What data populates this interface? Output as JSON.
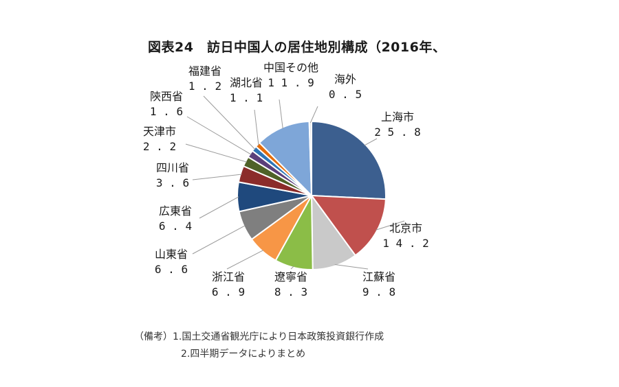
{
  "chart_data": {
    "type": "pie",
    "title": "図表24　訪日中国人の居住地別構成（2016年、",
    "slices": [
      {
        "label": "上海市",
        "value": 25.8,
        "value_text": "25.8",
        "color": "#3c5f8f"
      },
      {
        "label": "北京市",
        "value": 14.2,
        "value_text": "14.2",
        "color": "#c0504d"
      },
      {
        "label": "江蘇省",
        "value": 9.8,
        "value_text": "9.8",
        "color": "#c9c9c9"
      },
      {
        "label": "遼寧省",
        "value": 8.3,
        "value_text": "8.3",
        "color": "#8bbd47"
      },
      {
        "label": "浙江省",
        "value": 6.9,
        "value_text": "6.9",
        "color": "#f79646"
      },
      {
        "label": "山東省",
        "value": 6.6,
        "value_text": "6.6",
        "color": "#7f7f7f"
      },
      {
        "label": "広東省",
        "value": 6.4,
        "value_text": "6.4",
        "color": "#1f497d"
      },
      {
        "label": "四川省",
        "value": 3.6,
        "value_text": "3.6",
        "color": "#8b2c2a"
      },
      {
        "label": "天津市",
        "value": 2.2,
        "value_text": "2.2",
        "color": "#4f6228"
      },
      {
        "label": "陝西省",
        "value": 1.6,
        "value_text": "1.6",
        "color": "#5b3f7a"
      },
      {
        "label": "福建省",
        "value": 1.2,
        "value_text": "1.2",
        "color": "#2e75b6"
      },
      {
        "label": "湖北省",
        "value": 1.1,
        "value_text": "1.1",
        "color": "#e46c0a"
      },
      {
        "label": "中国その他",
        "value": 11.9,
        "value_text": "11.9",
        "color": "#7ea6d8"
      },
      {
        "label": "海外",
        "value": 0.5,
        "value_text": "0.5",
        "color": "#e8e8e8"
      }
    ],
    "unit": "%"
  },
  "notes": {
    "line1": "（備考）1.国土交通省観光庁により日本政策投資銀行作成",
    "line2": "2.四半期データによりまとめ"
  }
}
